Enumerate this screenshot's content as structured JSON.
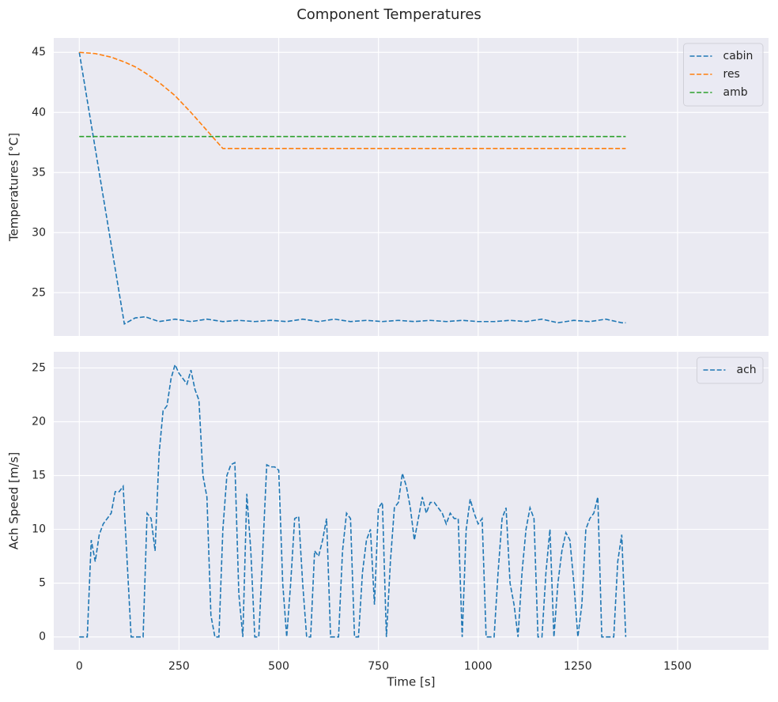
{
  "title": "Component Temperatures",
  "chart_data": [
    {
      "type": "line",
      "ylabel": "Temperatures [°C]",
      "legend": "upper right",
      "grid": true,
      "xlim": [
        -64,
        1728
      ],
      "ylim": [
        21.4,
        46.2
      ],
      "yticks": [
        25,
        30,
        35,
        40,
        45
      ],
      "x": [
        0,
        40,
        80,
        113,
        140,
        165,
        200,
        240,
        280,
        320,
        360,
        400,
        440,
        480,
        520,
        560,
        600,
        640,
        680,
        720,
        760,
        800,
        840,
        880,
        920,
        960,
        1000,
        1040,
        1080,
        1120,
        1160,
        1200,
        1240,
        1280,
        1320,
        1360,
        1370
      ],
      "series": [
        {
          "name": "cabin",
          "color": "#1f77b4",
          "values": [
            45,
            37,
            29,
            22.4,
            22.9,
            23.0,
            22.6,
            22.8,
            22.6,
            22.8,
            22.6,
            22.7,
            22.6,
            22.7,
            22.6,
            22.8,
            22.6,
            22.8,
            22.6,
            22.7,
            22.6,
            22.7,
            22.6,
            22.7,
            22.6,
            22.7,
            22.6,
            22.6,
            22.7,
            22.6,
            22.8,
            22.5,
            22.7,
            22.6,
            22.8,
            22.5,
            22.5
          ]
        },
        {
          "name": "res",
          "color": "#ff7f0e",
          "values": [
            45,
            44.9,
            44.6,
            44.2,
            43.8,
            43.3,
            42.5,
            41.4,
            40.0,
            38.5,
            37,
            37,
            37,
            37,
            37,
            37,
            37,
            37,
            37,
            37,
            37,
            37,
            37,
            37,
            37,
            37,
            37,
            37,
            37,
            37,
            37,
            37,
            37,
            37,
            37,
            37,
            37
          ]
        },
        {
          "name": "amb",
          "color": "#2ca02c",
          "values": [
            38,
            38,
            38,
            38,
            38,
            38,
            38,
            38,
            38,
            38,
            38,
            38,
            38,
            38,
            38,
            38,
            38,
            38,
            38,
            38,
            38,
            38,
            38,
            38,
            38,
            38,
            38,
            38,
            38,
            38,
            38,
            38,
            38,
            38,
            38,
            38,
            38
          ]
        }
      ]
    },
    {
      "type": "line",
      "xlabel": "Time [s]",
      "ylabel": "Ach Speed [m/s]",
      "legend": "upper right",
      "grid": true,
      "xlim": [
        -64,
        1728
      ],
      "ylim": [
        -1.2,
        26.5
      ],
      "xticks": [
        0,
        250,
        500,
        750,
        1000,
        1250,
        1500
      ],
      "yticks": [
        0,
        5,
        10,
        15,
        20,
        25
      ],
      "x": [
        0,
        10,
        20,
        30,
        40,
        50,
        60,
        70,
        80,
        90,
        100,
        110,
        120,
        130,
        140,
        150,
        160,
        170,
        180,
        190,
        200,
        210,
        220,
        230,
        240,
        250,
        260,
        270,
        280,
        290,
        300,
        310,
        320,
        330,
        340,
        350,
        360,
        370,
        380,
        390,
        400,
        410,
        420,
        430,
        440,
        450,
        460,
        470,
        480,
        490,
        500,
        510,
        520,
        530,
        540,
        550,
        560,
        570,
        580,
        590,
        600,
        610,
        620,
        630,
        640,
        650,
        660,
        670,
        680,
        690,
        700,
        710,
        720,
        730,
        740,
        750,
        760,
        770,
        780,
        790,
        800,
        810,
        820,
        830,
        840,
        850,
        860,
        870,
        880,
        890,
        900,
        910,
        920,
        930,
        940,
        950,
        960,
        970,
        980,
        990,
        1000,
        1010,
        1020,
        1030,
        1040,
        1050,
        1060,
        1070,
        1080,
        1090,
        1100,
        1110,
        1120,
        1130,
        1140,
        1150,
        1160,
        1170,
        1180,
        1190,
        1200,
        1210,
        1220,
        1230,
        1240,
        1250,
        1260,
        1270,
        1280,
        1290,
        1300,
        1310,
        1320,
        1330,
        1340,
        1350,
        1360,
        1370
      ],
      "series": [
        {
          "name": "ach",
          "color": "#1f77b4",
          "values": [
            0,
            0,
            0,
            9,
            7,
            9.5,
            10.5,
            11,
            11.5,
            13.5,
            13.5,
            14,
            7,
            0,
            0,
            0,
            0,
            11.5,
            11,
            8,
            17,
            21,
            21.5,
            24,
            25.3,
            24.5,
            24,
            23.5,
            24.8,
            23,
            22,
            15,
            13,
            2,
            0,
            0,
            10,
            15,
            16,
            16.2,
            4,
            0,
            13.3,
            8,
            0,
            0,
            8,
            16,
            15.8,
            15.8,
            15.5,
            5,
            0,
            5,
            11,
            11.2,
            5,
            0,
            0,
            8,
            7.5,
            9,
            11,
            0,
            0,
            0,
            8,
            11.5,
            11,
            0,
            0,
            6,
            9,
            10,
            3,
            12,
            12.5,
            0,
            7,
            12,
            12.5,
            15.2,
            14,
            12,
            9,
            11,
            13,
            11.5,
            12.5,
            12.5,
            12,
            11.5,
            10.5,
            11.5,
            11,
            11,
            0,
            10,
            12.8,
            11.5,
            10.5,
            11,
            0,
            0,
            0,
            6,
            11,
            12,
            5,
            3,
            0,
            6,
            10,
            12,
            11,
            0,
            0,
            6,
            10,
            0,
            5,
            8,
            9.7,
            9,
            5,
            0,
            3,
            10,
            11,
            11.5,
            13,
            0,
            0,
            0,
            0,
            7,
            9.5,
            0
          ]
        }
      ]
    }
  ]
}
